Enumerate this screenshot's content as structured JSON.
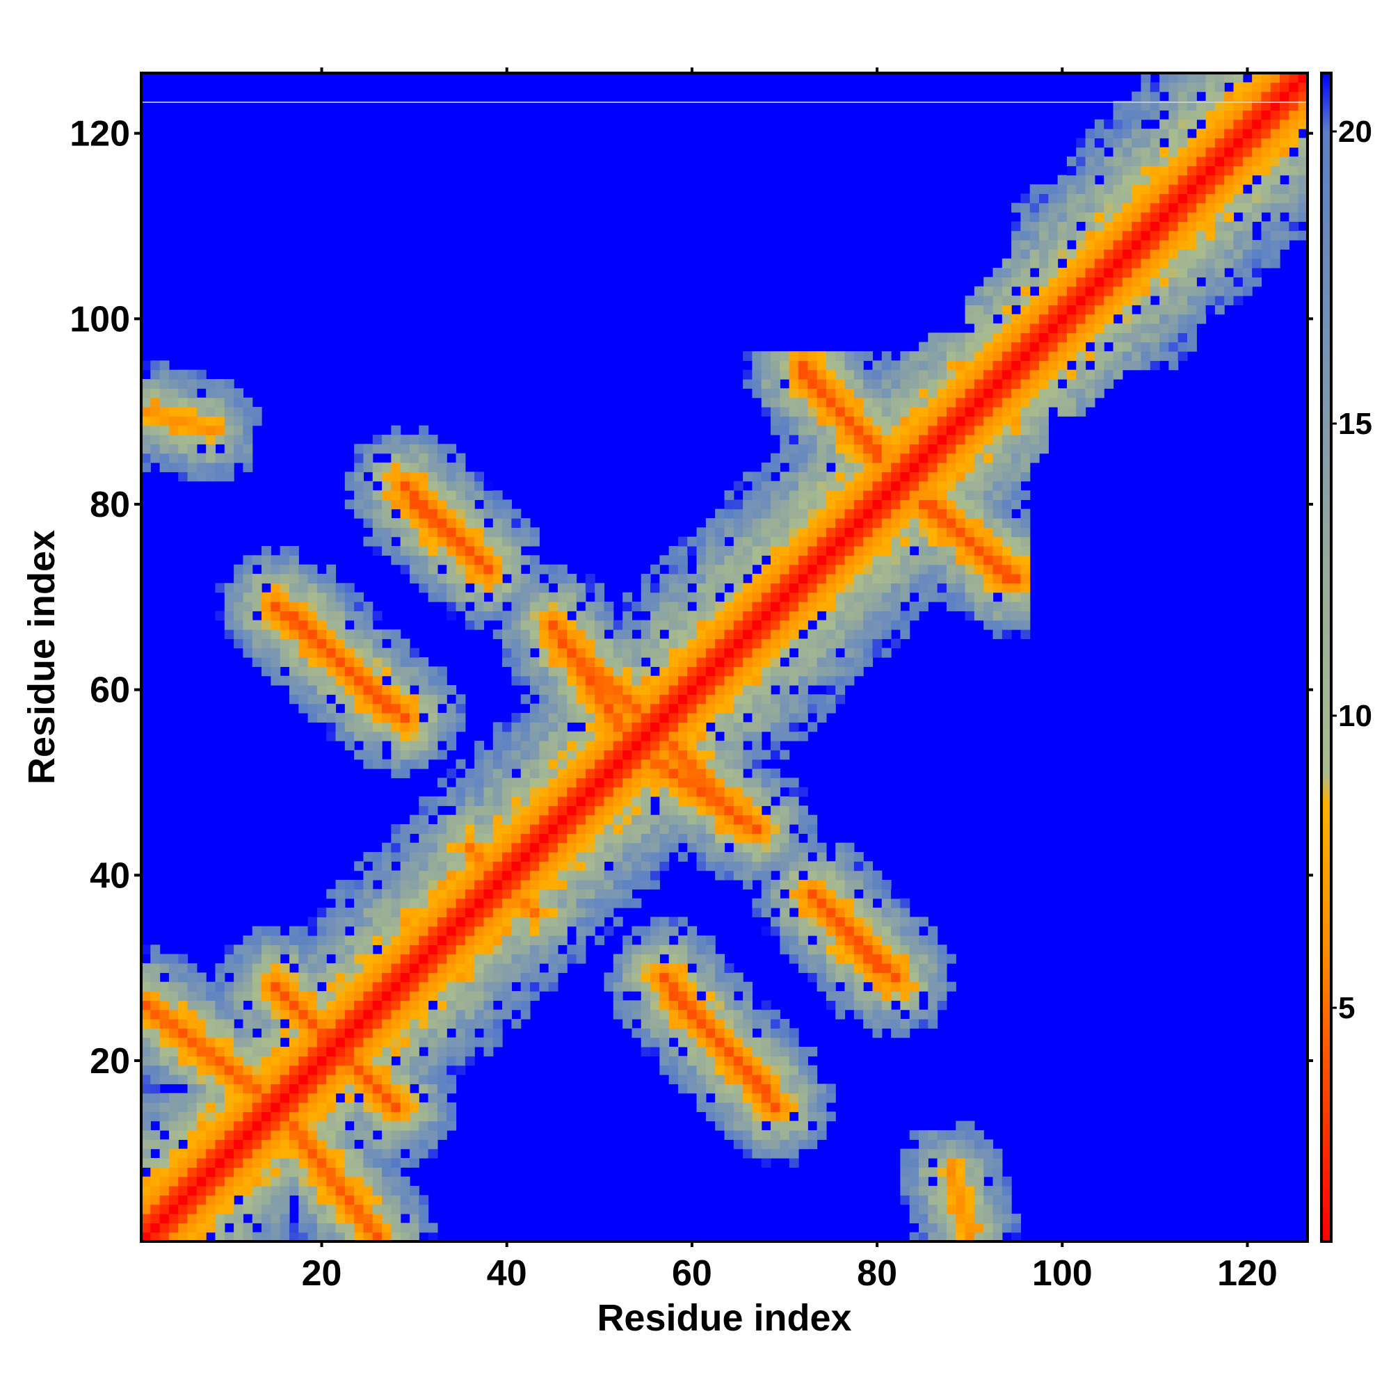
{
  "chart_data": {
    "type": "heatmap",
    "xlabel": "Residue index",
    "ylabel": "Residue index",
    "n_residues": 126,
    "xlim": [
      1,
      126
    ],
    "ylim": [
      1,
      126
    ],
    "x_ticks": [
      20,
      40,
      60,
      80,
      100,
      120
    ],
    "y_ticks": [
      20,
      40,
      60,
      80,
      100,
      120
    ],
    "colorbar": {
      "ticks": [
        5,
        10,
        15,
        20
      ],
      "range": [
        1,
        21
      ],
      "stops": [
        {
          "value": 1,
          "color": "#ff0000"
        },
        {
          "value": 4,
          "color": "#ff5000"
        },
        {
          "value": 6,
          "color": "#ff8c00"
        },
        {
          "value": 8.5,
          "color": "#ffb000"
        },
        {
          "value": 9,
          "color": "#a9bb8e"
        },
        {
          "value": 12,
          "color": "#9aae98"
        },
        {
          "value": 16,
          "color": "#7895b4"
        },
        {
          "value": 20,
          "color": "#5a7fc6"
        },
        {
          "value": 21,
          "color": "#0000ff"
        }
      ]
    },
    "background_color": "#0000ff",
    "contacts": {
      "diagonal_width": 12,
      "strands": [
        {
          "i": [
            15,
            23
          ],
          "j": [
            28,
            20
          ],
          "min": 4
        },
        {
          "i": [
            1,
            14
          ],
          "j": [
            26,
            16
          ],
          "min": 4
        },
        {
          "i": [
            57,
            69
          ],
          "j": [
            29,
            15
          ],
          "min": 4
        },
        {
          "i": [
            46,
            56
          ],
          "j": [
            65,
            56
          ],
          "min": 4
        },
        {
          "i": [
            55,
            67
          ],
          "j": [
            53,
            45
          ],
          "min": 4
        },
        {
          "i": [
            17,
            27
          ],
          "j": [
            68,
            58
          ],
          "min": 4
        },
        {
          "i": [
            29,
            38
          ],
          "j": [
            82,
            73
          ],
          "min": 4
        },
        {
          "i": [
            72,
            80
          ],
          "j": [
            94,
            86
          ],
          "min": 4
        },
        {
          "i": [
            85,
            95
          ],
          "j": [
            80,
            72
          ],
          "min": 4
        },
        {
          "i": [
            73,
            80
          ],
          "j": [
            38,
            30
          ],
          "min": 4
        },
        {
          "i": [
            1,
            8
          ],
          "j": [
            90,
            88
          ],
          "min": 6
        },
        {
          "i": [
            36,
            40
          ],
          "j": [
            43,
            38
          ],
          "min": 5
        }
      ]
    }
  }
}
